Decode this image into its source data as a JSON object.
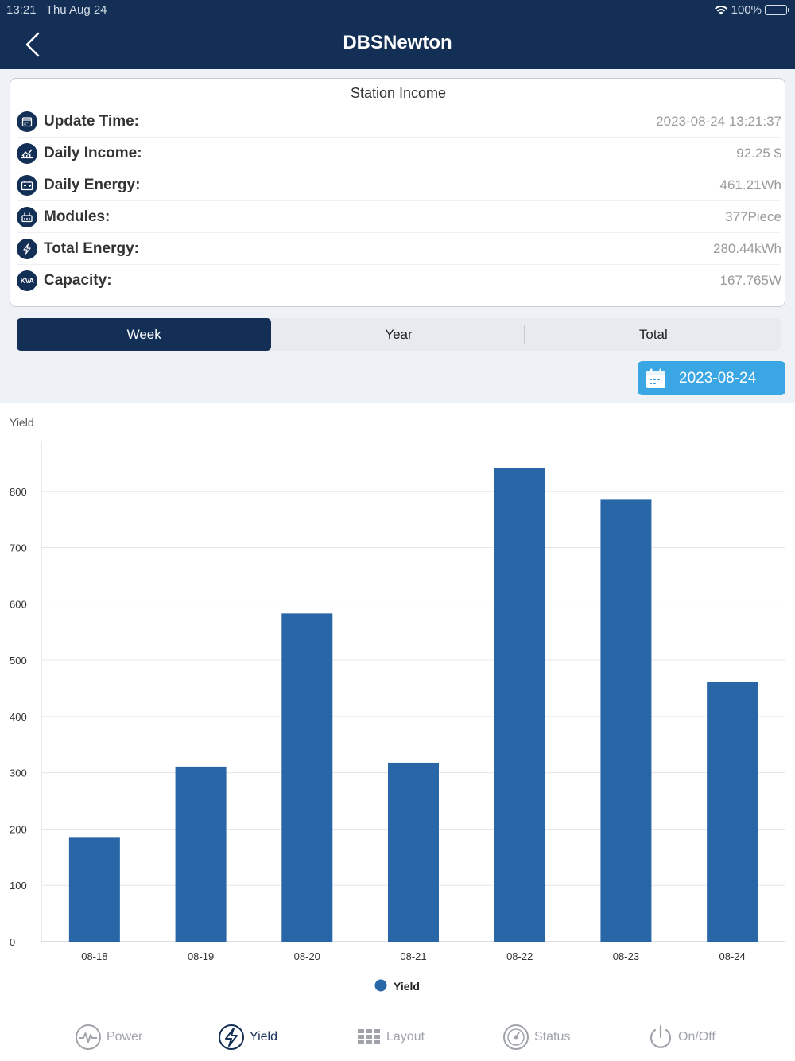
{
  "status_bar": {
    "time": "13:21",
    "date": "Thu Aug 24",
    "battery": "100%"
  },
  "header": {
    "title": "DBSNewton"
  },
  "card": {
    "title": "Station Income",
    "rows": [
      {
        "icon": "calendar-icon",
        "label": "Update Time:",
        "value": "2023-08-24 13:21:37"
      },
      {
        "icon": "chart-line-icon",
        "label": "Daily Income:",
        "value": "92.25 $"
      },
      {
        "icon": "battery-icon",
        "label": "Daily Energy:",
        "value": "461.21Wh"
      },
      {
        "icon": "module-icon",
        "label": "Modules:",
        "value": "377Piece"
      },
      {
        "icon": "bolt-icon",
        "label": "Total Energy:",
        "value": "280.44kWh"
      },
      {
        "icon": "kva-icon",
        "label": "Capacity:",
        "value": "167.765W"
      }
    ]
  },
  "kva_badge": "KVA",
  "segments": {
    "week": "Week",
    "year": "Year",
    "total": "Total",
    "active": "Week"
  },
  "date_picker": {
    "value": "2023-08-24"
  },
  "chart_data": {
    "type": "bar",
    "ylabel": "Yield",
    "categories": [
      "08-18",
      "08-19",
      "08-20",
      "08-21",
      "08-22",
      "08-23",
      "08-24"
    ],
    "series": [
      {
        "name": "Yield",
        "values": [
          186,
          311,
          583,
          318,
          841,
          785,
          461
        ]
      }
    ],
    "ylim": [
      0,
      900
    ],
    "yticks": [
      0,
      100,
      200,
      300,
      400,
      500,
      600,
      700,
      800
    ],
    "grid": true,
    "legend_position": "bottom-center",
    "bar_color": "#2866a8"
  },
  "tabs": [
    {
      "label": "Power",
      "icon": "pulse-icon",
      "active": false
    },
    {
      "label": "Yield",
      "icon": "bolt-circle-icon",
      "active": true
    },
    {
      "label": "Layout",
      "icon": "grid-icon",
      "active": false
    },
    {
      "label": "Status",
      "icon": "gauge-icon",
      "active": false
    },
    {
      "label": "On/Off",
      "icon": "power-icon",
      "active": false
    }
  ],
  "colors": {
    "primary": "#132f55",
    "accent": "#3aa7e4",
    "bar": "#2866a8"
  }
}
